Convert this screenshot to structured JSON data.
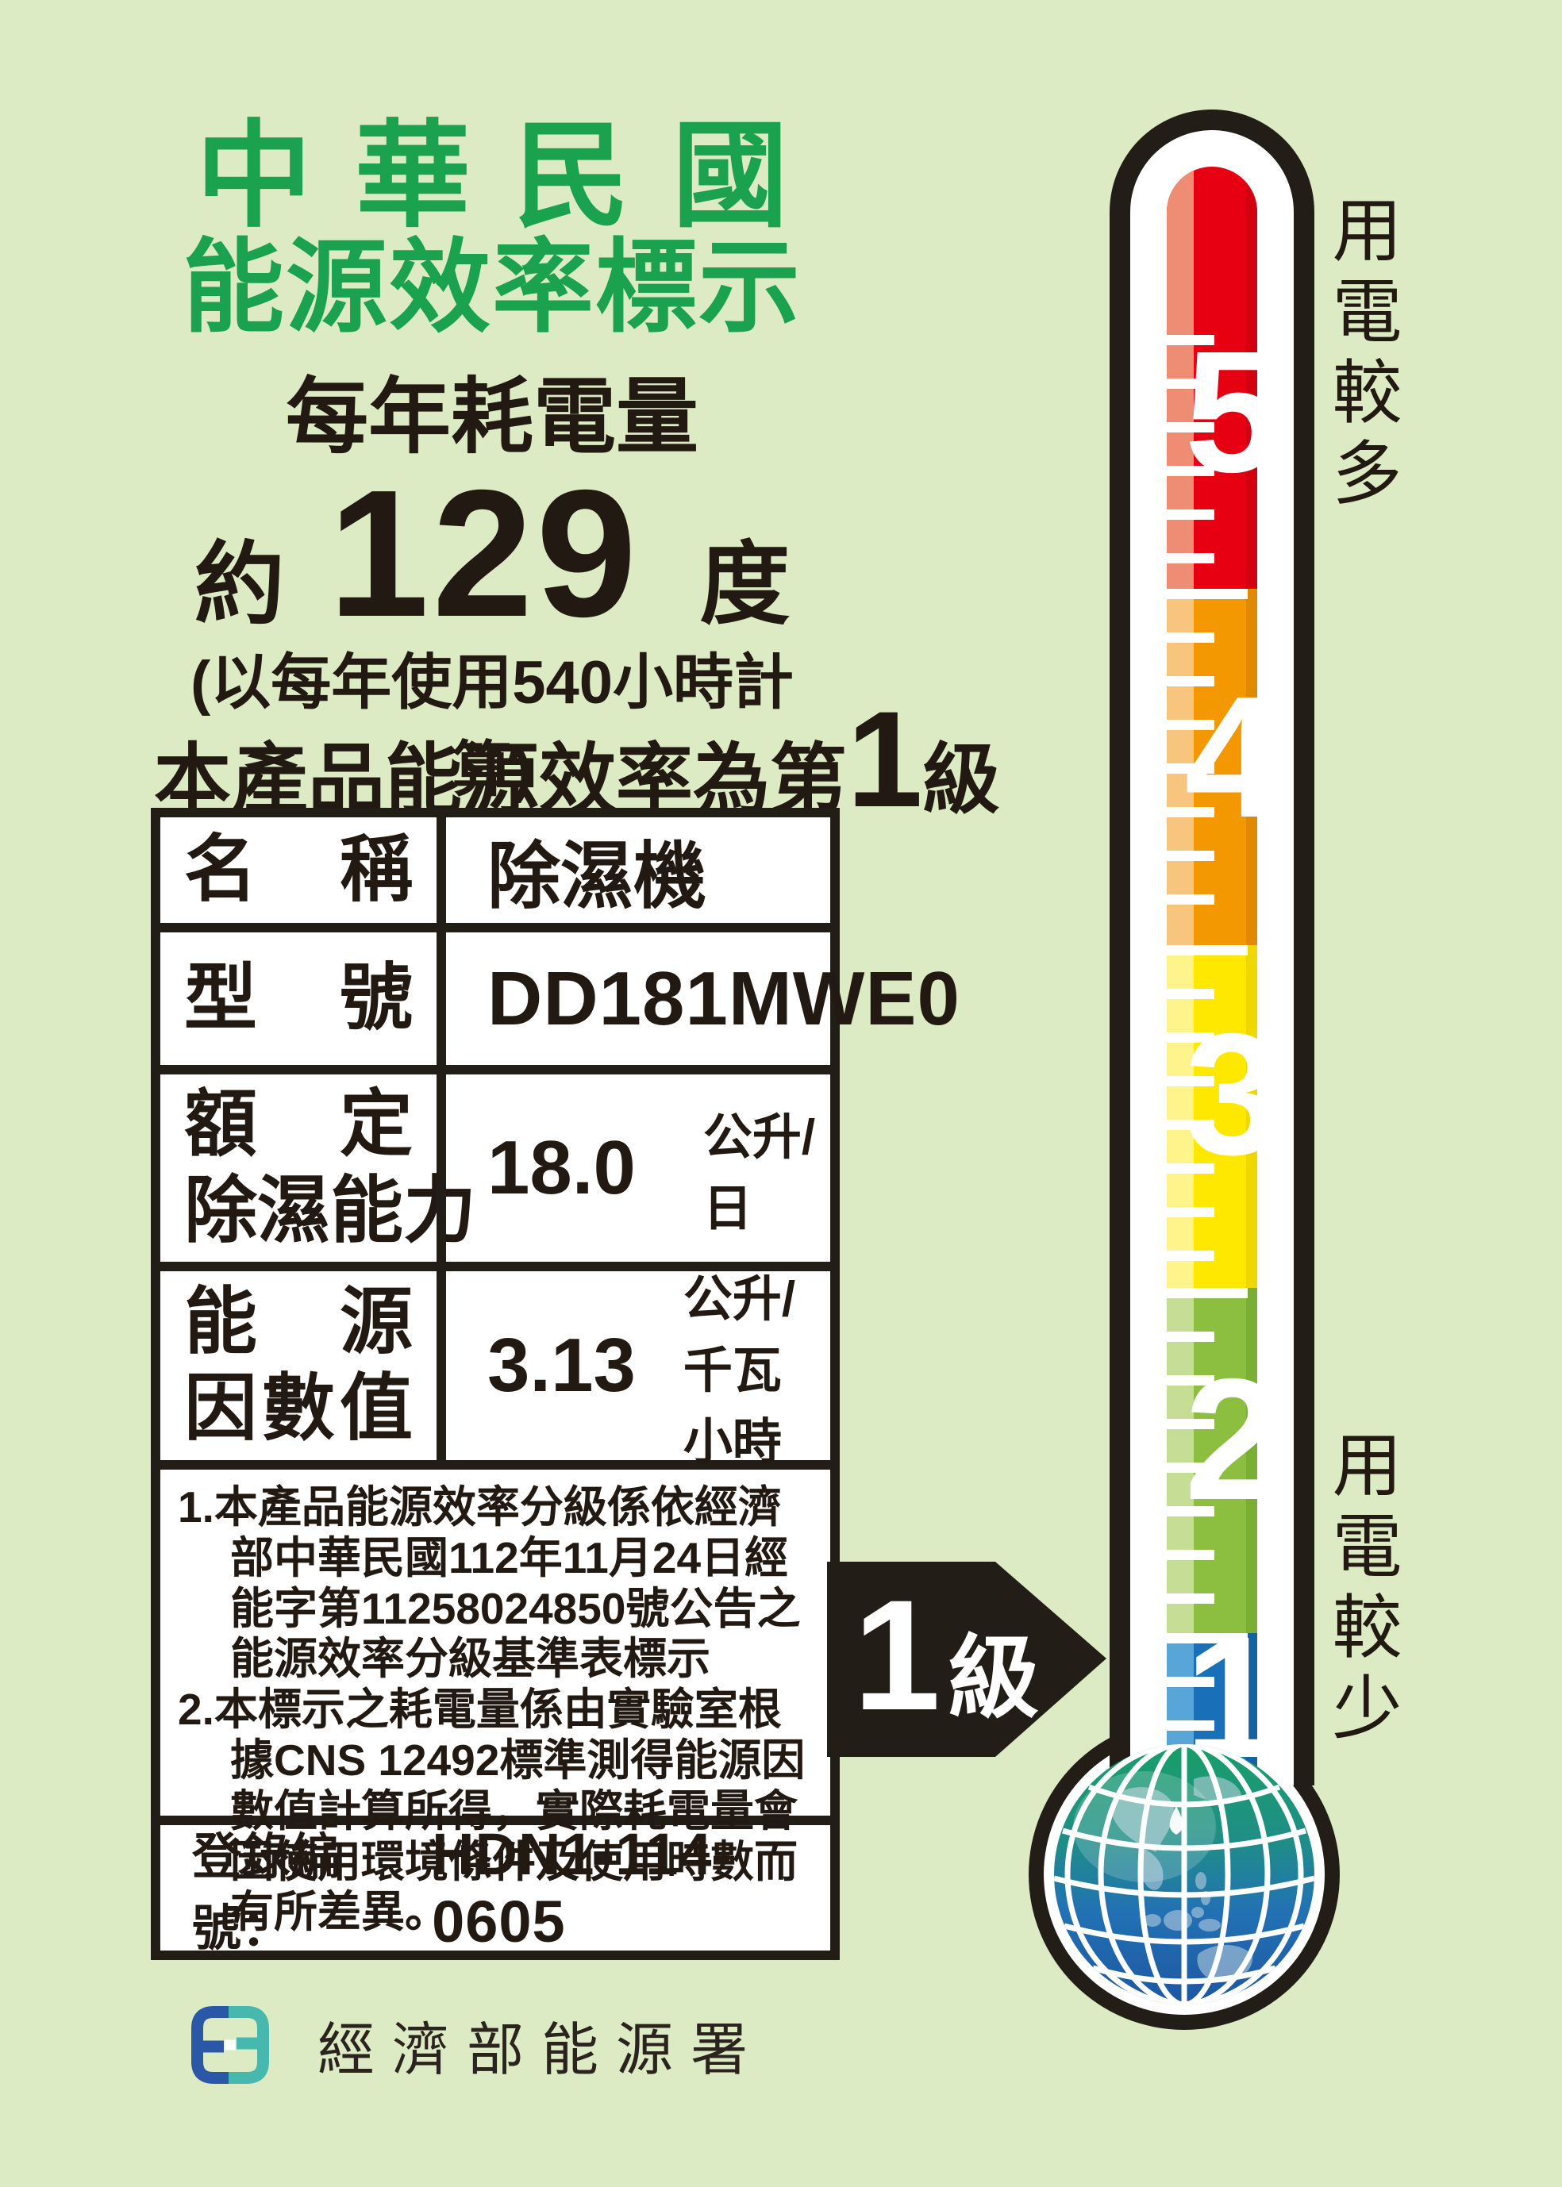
{
  "colors": {
    "background": "#dcebc3",
    "title_green": "#1ba24e",
    "ink_black": "#221a12",
    "logo_blue": "#2b57a7",
    "logo_teal": "#47b8ad"
  },
  "header": {
    "title_line1": "中華民國",
    "title_line2": "能源效率標示",
    "annual_heading": "每年耗電量",
    "approx_prefix": "約",
    "annual_consumption": "129",
    "consumption_unit": "度",
    "calc_basis": "(以每年使用540小時計算)",
    "grade_prefix": "本產品能源效率為第",
    "grade_number": "1",
    "grade_suffix": "級"
  },
  "table": {
    "rows": [
      {
        "label_line1": "名稱",
        "label_line2": "",
        "value": "除濕機",
        "unit": ""
      },
      {
        "label_line1": "型號",
        "label_line2": "",
        "value": "DD181MWE0",
        "unit": ""
      },
      {
        "label_line1": "額定",
        "label_line2": "除濕能力",
        "value": "18.0",
        "unit": "公升/日"
      },
      {
        "label_line1": "能源",
        "label_line2": "因數值",
        "value": "3.13",
        "unit": "公升/千瓦小時"
      }
    ],
    "notes": [
      "本產品能源效率分級係依經濟部中華民國112年11月24日經能字第11258024850號公告之能源效率分級基準表標示",
      "本標示之耗電量係由實驗室根據CNS 12492標準測得能源因數值計算所得，實際耗電量會因使用環境條件及使用時數而有所差異。"
    ],
    "registration_label": "登錄編號：",
    "registration_number": "HDN1-114-0605"
  },
  "thermometer": {
    "levels": [
      {
        "number": "5",
        "color": "#e60012",
        "highlight": "#ef8d74",
        "shade": "#cf000f"
      },
      {
        "number": "4",
        "color": "#f39800",
        "highlight": "#f7c57d",
        "shade": "#dd8700"
      },
      {
        "number": "3",
        "color": "#ffe800",
        "highlight": "#fff48c",
        "shade": "#efd400"
      },
      {
        "number": "2",
        "color": "#8cbf40",
        "highlight": "#c6dd96",
        "shade": "#76ab31"
      },
      {
        "number": "1",
        "color": "#1a70b8",
        "highlight": "#58a5d8",
        "shade": "#135f9f"
      }
    ],
    "label_top": "用電較多",
    "label_bottom": "用電較少",
    "arrow_grade": "1",
    "arrow_suffix": "級"
  },
  "footer": {
    "agency_name": "經濟部能源署"
  }
}
